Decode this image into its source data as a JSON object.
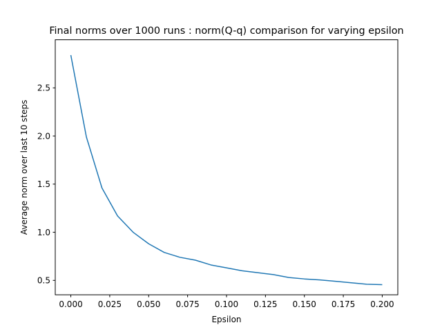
{
  "chart_data": {
    "type": "line",
    "title": "Final norms over 1000 runs : norm(Q-q) comparison for varying epsilon",
    "xlabel": "Epsilon",
    "ylabel": "Average norm over last 10 steps",
    "xlim": [
      -0.01,
      0.21
    ],
    "ylim": [
      0.35,
      3.0
    ],
    "xticks": [
      0.0,
      0.025,
      0.05,
      0.075,
      0.1,
      0.125,
      0.15,
      0.175,
      0.2
    ],
    "xtick_labels": [
      "0.000",
      "0.025",
      "0.050",
      "0.075",
      "0.100",
      "0.125",
      "0.150",
      "0.175",
      "0.200"
    ],
    "yticks": [
      0.5,
      1.0,
      1.5,
      2.0,
      2.5
    ],
    "ytick_labels": [
      "0.5",
      "1.0",
      "1.5",
      "2.0",
      "2.5"
    ],
    "grid": false,
    "series": [
      {
        "color": "#1f77b4",
        "x": [
          0.0,
          0.01,
          0.02,
          0.03,
          0.04,
          0.05,
          0.06,
          0.07,
          0.08,
          0.09,
          0.1,
          0.11,
          0.12,
          0.13,
          0.14,
          0.15,
          0.16,
          0.17,
          0.18,
          0.19,
          0.2
        ],
        "y": [
          2.84,
          1.99,
          1.46,
          1.17,
          1.0,
          0.88,
          0.79,
          0.74,
          0.71,
          0.66,
          0.63,
          0.6,
          0.58,
          0.56,
          0.53,
          0.515,
          0.505,
          0.49,
          0.475,
          0.46,
          0.455
        ]
      }
    ]
  }
}
